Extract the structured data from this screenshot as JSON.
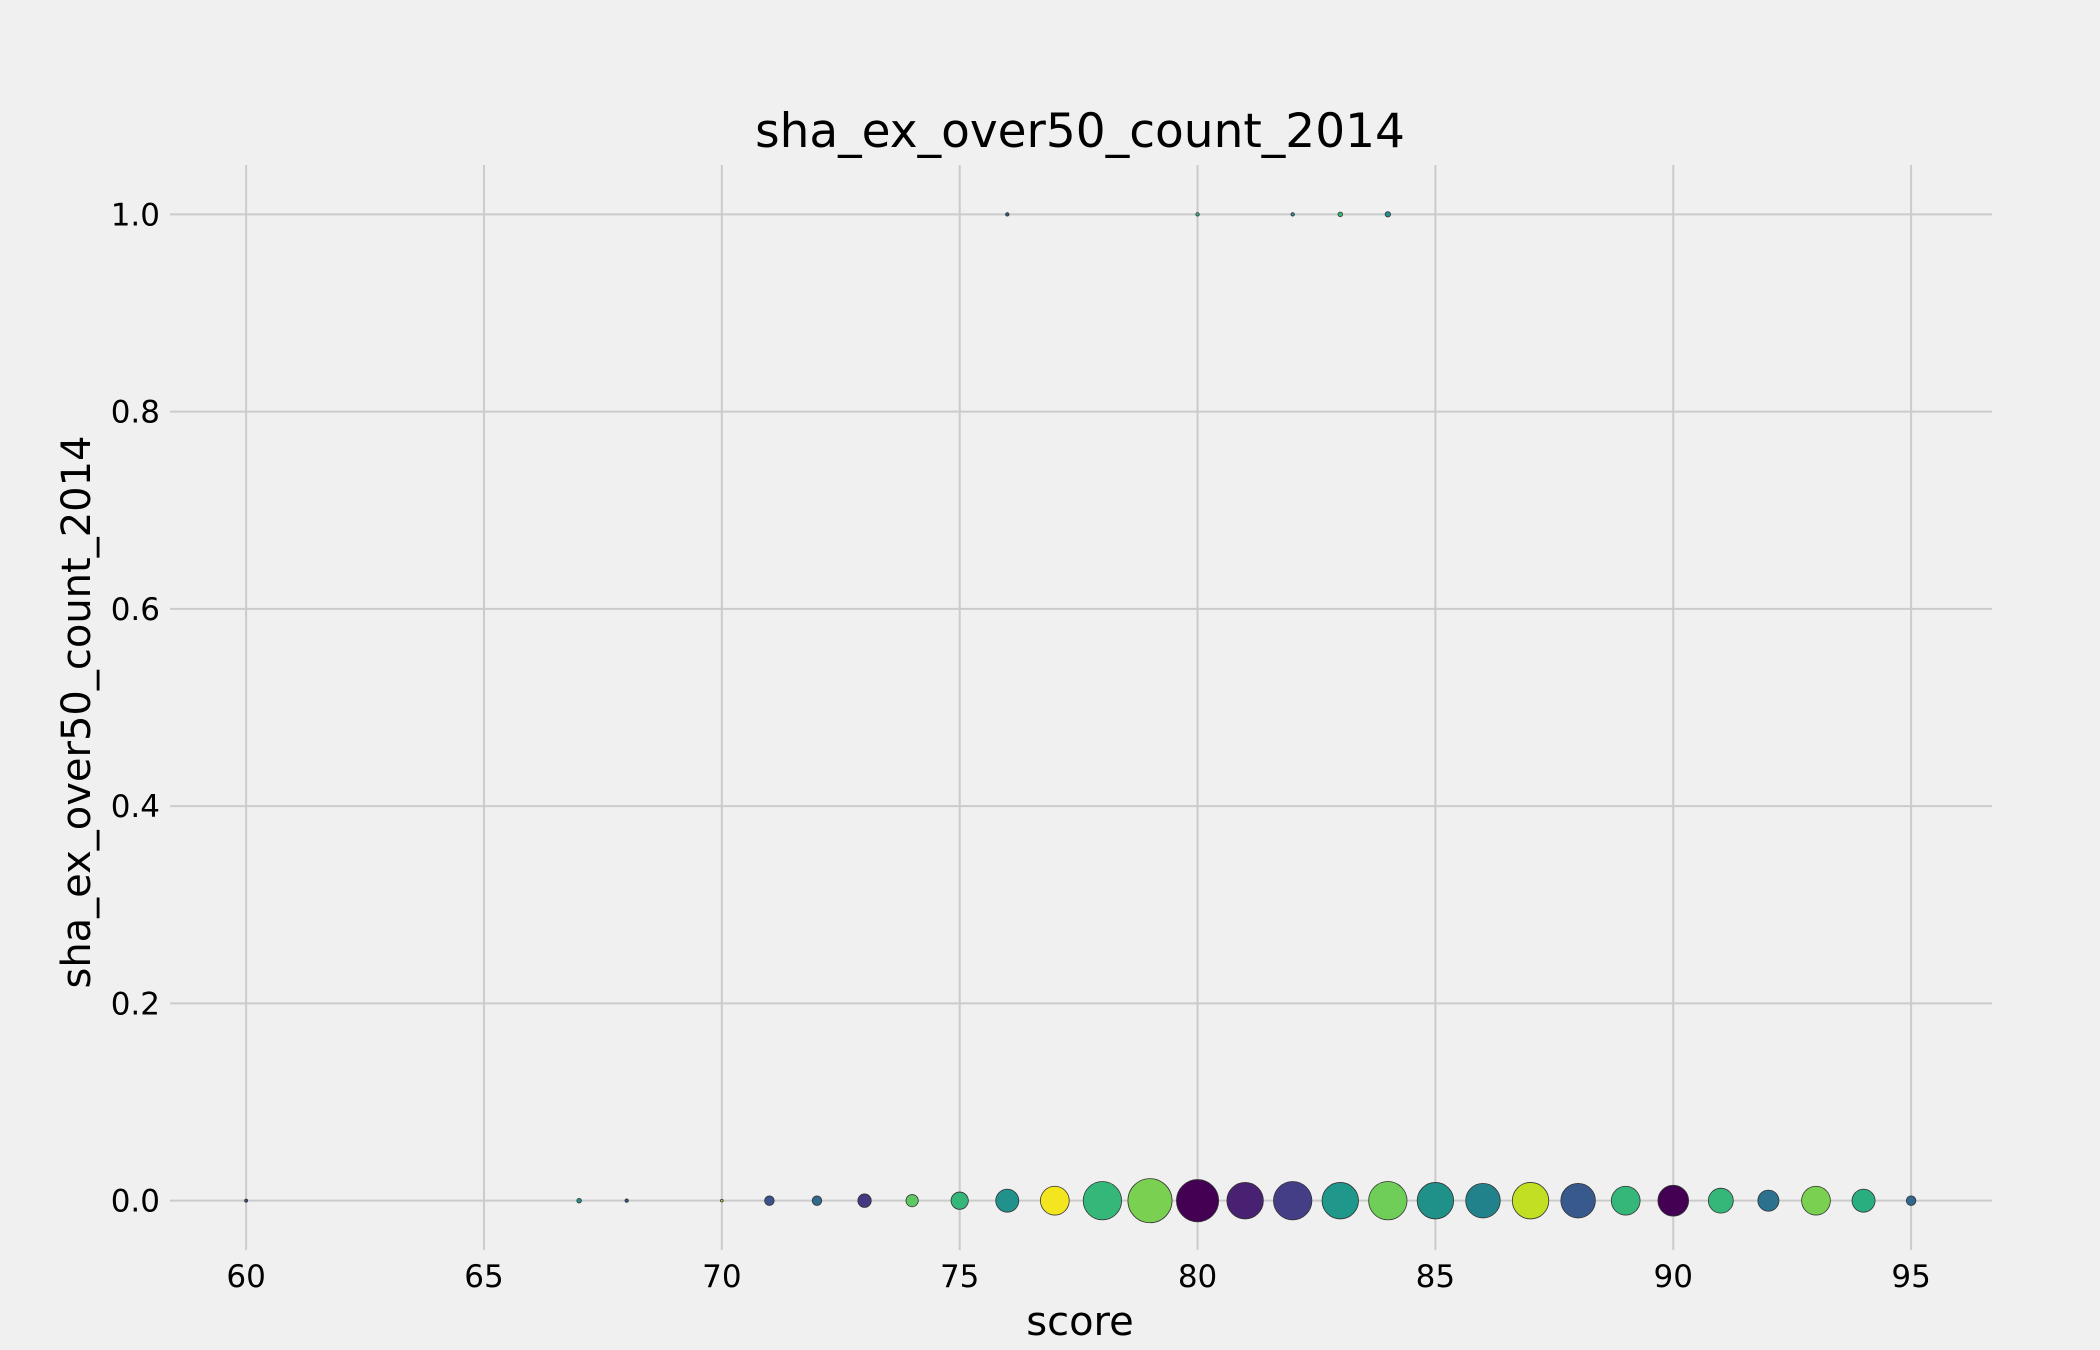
{
  "chart_data": {
    "type": "scatter",
    "title": "sha_ex_over50_count_2014",
    "xlabel": "score",
    "ylabel": "sha_ex_over50_count_2014",
    "xlim": [
      58.4,
      96.7
    ],
    "ylim": [
      -0.05,
      1.05
    ],
    "x_ticks": [
      60,
      65,
      70,
      75,
      80,
      85,
      90,
      95
    ],
    "y_ticks": [
      0.0,
      0.2,
      0.4,
      0.6,
      0.8,
      1.0
    ],
    "x_tick_labels": [
      "60",
      "65",
      "70",
      "75",
      "80",
      "85",
      "90",
      "95"
    ],
    "y_tick_labels": [
      "0.0",
      "0.2",
      "0.4",
      "0.6",
      "0.8",
      "1.0"
    ],
    "grid": true,
    "colormap": "viridis",
    "background": "#f0f0f0",
    "points": [
      {
        "x": 60,
        "y": 0,
        "size": 0.8,
        "color": "#3b528b"
      },
      {
        "x": 67,
        "y": 0,
        "size": 1.2,
        "color": "#21918c"
      },
      {
        "x": 68,
        "y": 0,
        "size": 0.9,
        "color": "#3b528b"
      },
      {
        "x": 70,
        "y": 0,
        "size": 0.7,
        "color": "#b5de2b"
      },
      {
        "x": 71,
        "y": 0,
        "size": 2.5,
        "color": "#3b528b"
      },
      {
        "x": 72,
        "y": 0,
        "size": 2.5,
        "color": "#31688e"
      },
      {
        "x": 73,
        "y": 0,
        "size": 3.5,
        "color": "#453781"
      },
      {
        "x": 74,
        "y": 0,
        "size": 3.2,
        "color": "#5ec962"
      },
      {
        "x": 75,
        "y": 0,
        "size": 4.5,
        "color": "#35b779"
      },
      {
        "x": 76,
        "y": 0,
        "size": 6,
        "color": "#21918c"
      },
      {
        "x": 77,
        "y": 0,
        "size": 7.5,
        "color": "#f4e61e"
      },
      {
        "x": 78,
        "y": 0,
        "size": 10,
        "color": "#35b779"
      },
      {
        "x": 79,
        "y": 0,
        "size": 11.5,
        "color": "#7ad151"
      },
      {
        "x": 80,
        "y": 0,
        "size": 11,
        "color": "#440154"
      },
      {
        "x": 81,
        "y": 0,
        "size": 9.5,
        "color": "#482173"
      },
      {
        "x": 82,
        "y": 0,
        "size": 10,
        "color": "#433e85"
      },
      {
        "x": 83,
        "y": 0,
        "size": 9.5,
        "color": "#1f988b"
      },
      {
        "x": 84,
        "y": 0,
        "size": 10,
        "color": "#6ece58"
      },
      {
        "x": 85,
        "y": 0,
        "size": 9.5,
        "color": "#1f9188"
      },
      {
        "x": 86,
        "y": 0,
        "size": 9,
        "color": "#21828c"
      },
      {
        "x": 87,
        "y": 0,
        "size": 9.5,
        "color": "#c2df23"
      },
      {
        "x": 88,
        "y": 0,
        "size": 9,
        "color": "#38598c"
      },
      {
        "x": 89,
        "y": 0,
        "size": 7.5,
        "color": "#35b779"
      },
      {
        "x": 90,
        "y": 0,
        "size": 8,
        "color": "#440154"
      },
      {
        "x": 91,
        "y": 0,
        "size": 6.5,
        "color": "#35b779"
      },
      {
        "x": 92,
        "y": 0,
        "size": 5.5,
        "color": "#2c728e"
      },
      {
        "x": 93,
        "y": 0,
        "size": 7.5,
        "color": "#7ad151"
      },
      {
        "x": 94,
        "y": 0,
        "size": 6,
        "color": "#29af7f"
      },
      {
        "x": 95,
        "y": 0,
        "size": 2.5,
        "color": "#31688e"
      },
      {
        "x": 76,
        "y": 1,
        "size": 0.9,
        "color": "#3b528b"
      },
      {
        "x": 80,
        "y": 1,
        "size": 0.9,
        "color": "#35b779"
      },
      {
        "x": 82,
        "y": 1,
        "size": 0.9,
        "color": "#21918c"
      },
      {
        "x": 83,
        "y": 1,
        "size": 1.2,
        "color": "#35b779"
      },
      {
        "x": 84,
        "y": 1,
        "size": 1.4,
        "color": "#21918c"
      }
    ]
  }
}
